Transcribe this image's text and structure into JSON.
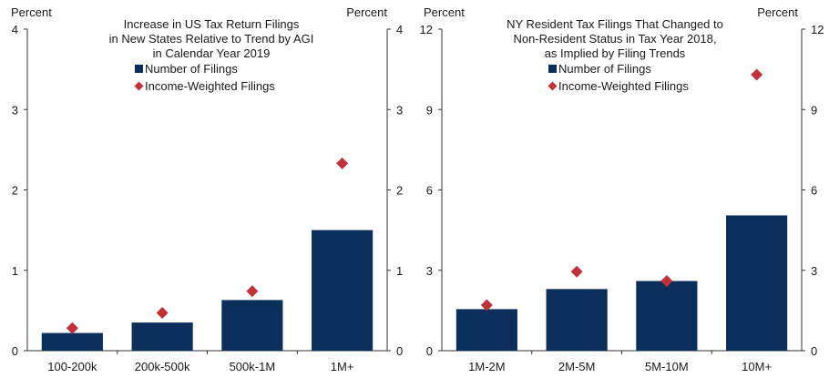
{
  "chart_data": [
    {
      "type": "bar",
      "title_lines": [
        "Increase  in US Tax Return Filings",
        "in New States Relative  to Trend  by AGI",
        "in Calendar  Year 2019"
      ],
      "left_axis_label": "Percent",
      "right_axis_label": "Percent",
      "categories": [
        "100-200k",
        "200k-500k",
        "500k-1M",
        "1M+"
      ],
      "ylim": [
        0,
        4
      ],
      "yticks": [
        "0",
        "1",
        "2",
        "3",
        "4"
      ],
      "series": [
        {
          "name": "Number of Filings",
          "kind": "bar",
          "color": "#0b2f5a",
          "values": [
            0.22,
            0.35,
            0.63,
            1.5
          ]
        },
        {
          "name": "Income-Weighted Filings",
          "kind": "marker",
          "color": "#c0313a",
          "values": [
            0.28,
            0.47,
            0.74,
            2.33
          ]
        }
      ],
      "legend_position": "top-center",
      "grid": false
    },
    {
      "type": "bar",
      "title_lines": [
        "NY Resident  Tax Filings That Changed  to",
        "Non-Resident  Status in Tax Year 2018,",
        "as Implied by Filing Trends"
      ],
      "left_axis_label": "Percent",
      "right_axis_label": "Percent",
      "categories": [
        "1M-2M",
        "2M-5M",
        "5M-10M",
        "10M+"
      ],
      "ylim": [
        0,
        12
      ],
      "yticks": [
        "0",
        "3",
        "6",
        "9",
        "12"
      ],
      "series": [
        {
          "name": "Number of Filings",
          "kind": "bar",
          "color": "#0b2f5a",
          "values": [
            1.55,
            2.3,
            2.6,
            5.05
          ]
        },
        {
          "name": "Income-Weighted Filings",
          "kind": "marker",
          "color": "#c0313a",
          "values": [
            1.7,
            2.95,
            2.6,
            10.3
          ]
        }
      ],
      "legend_position": "top-center",
      "grid": false
    }
  ]
}
